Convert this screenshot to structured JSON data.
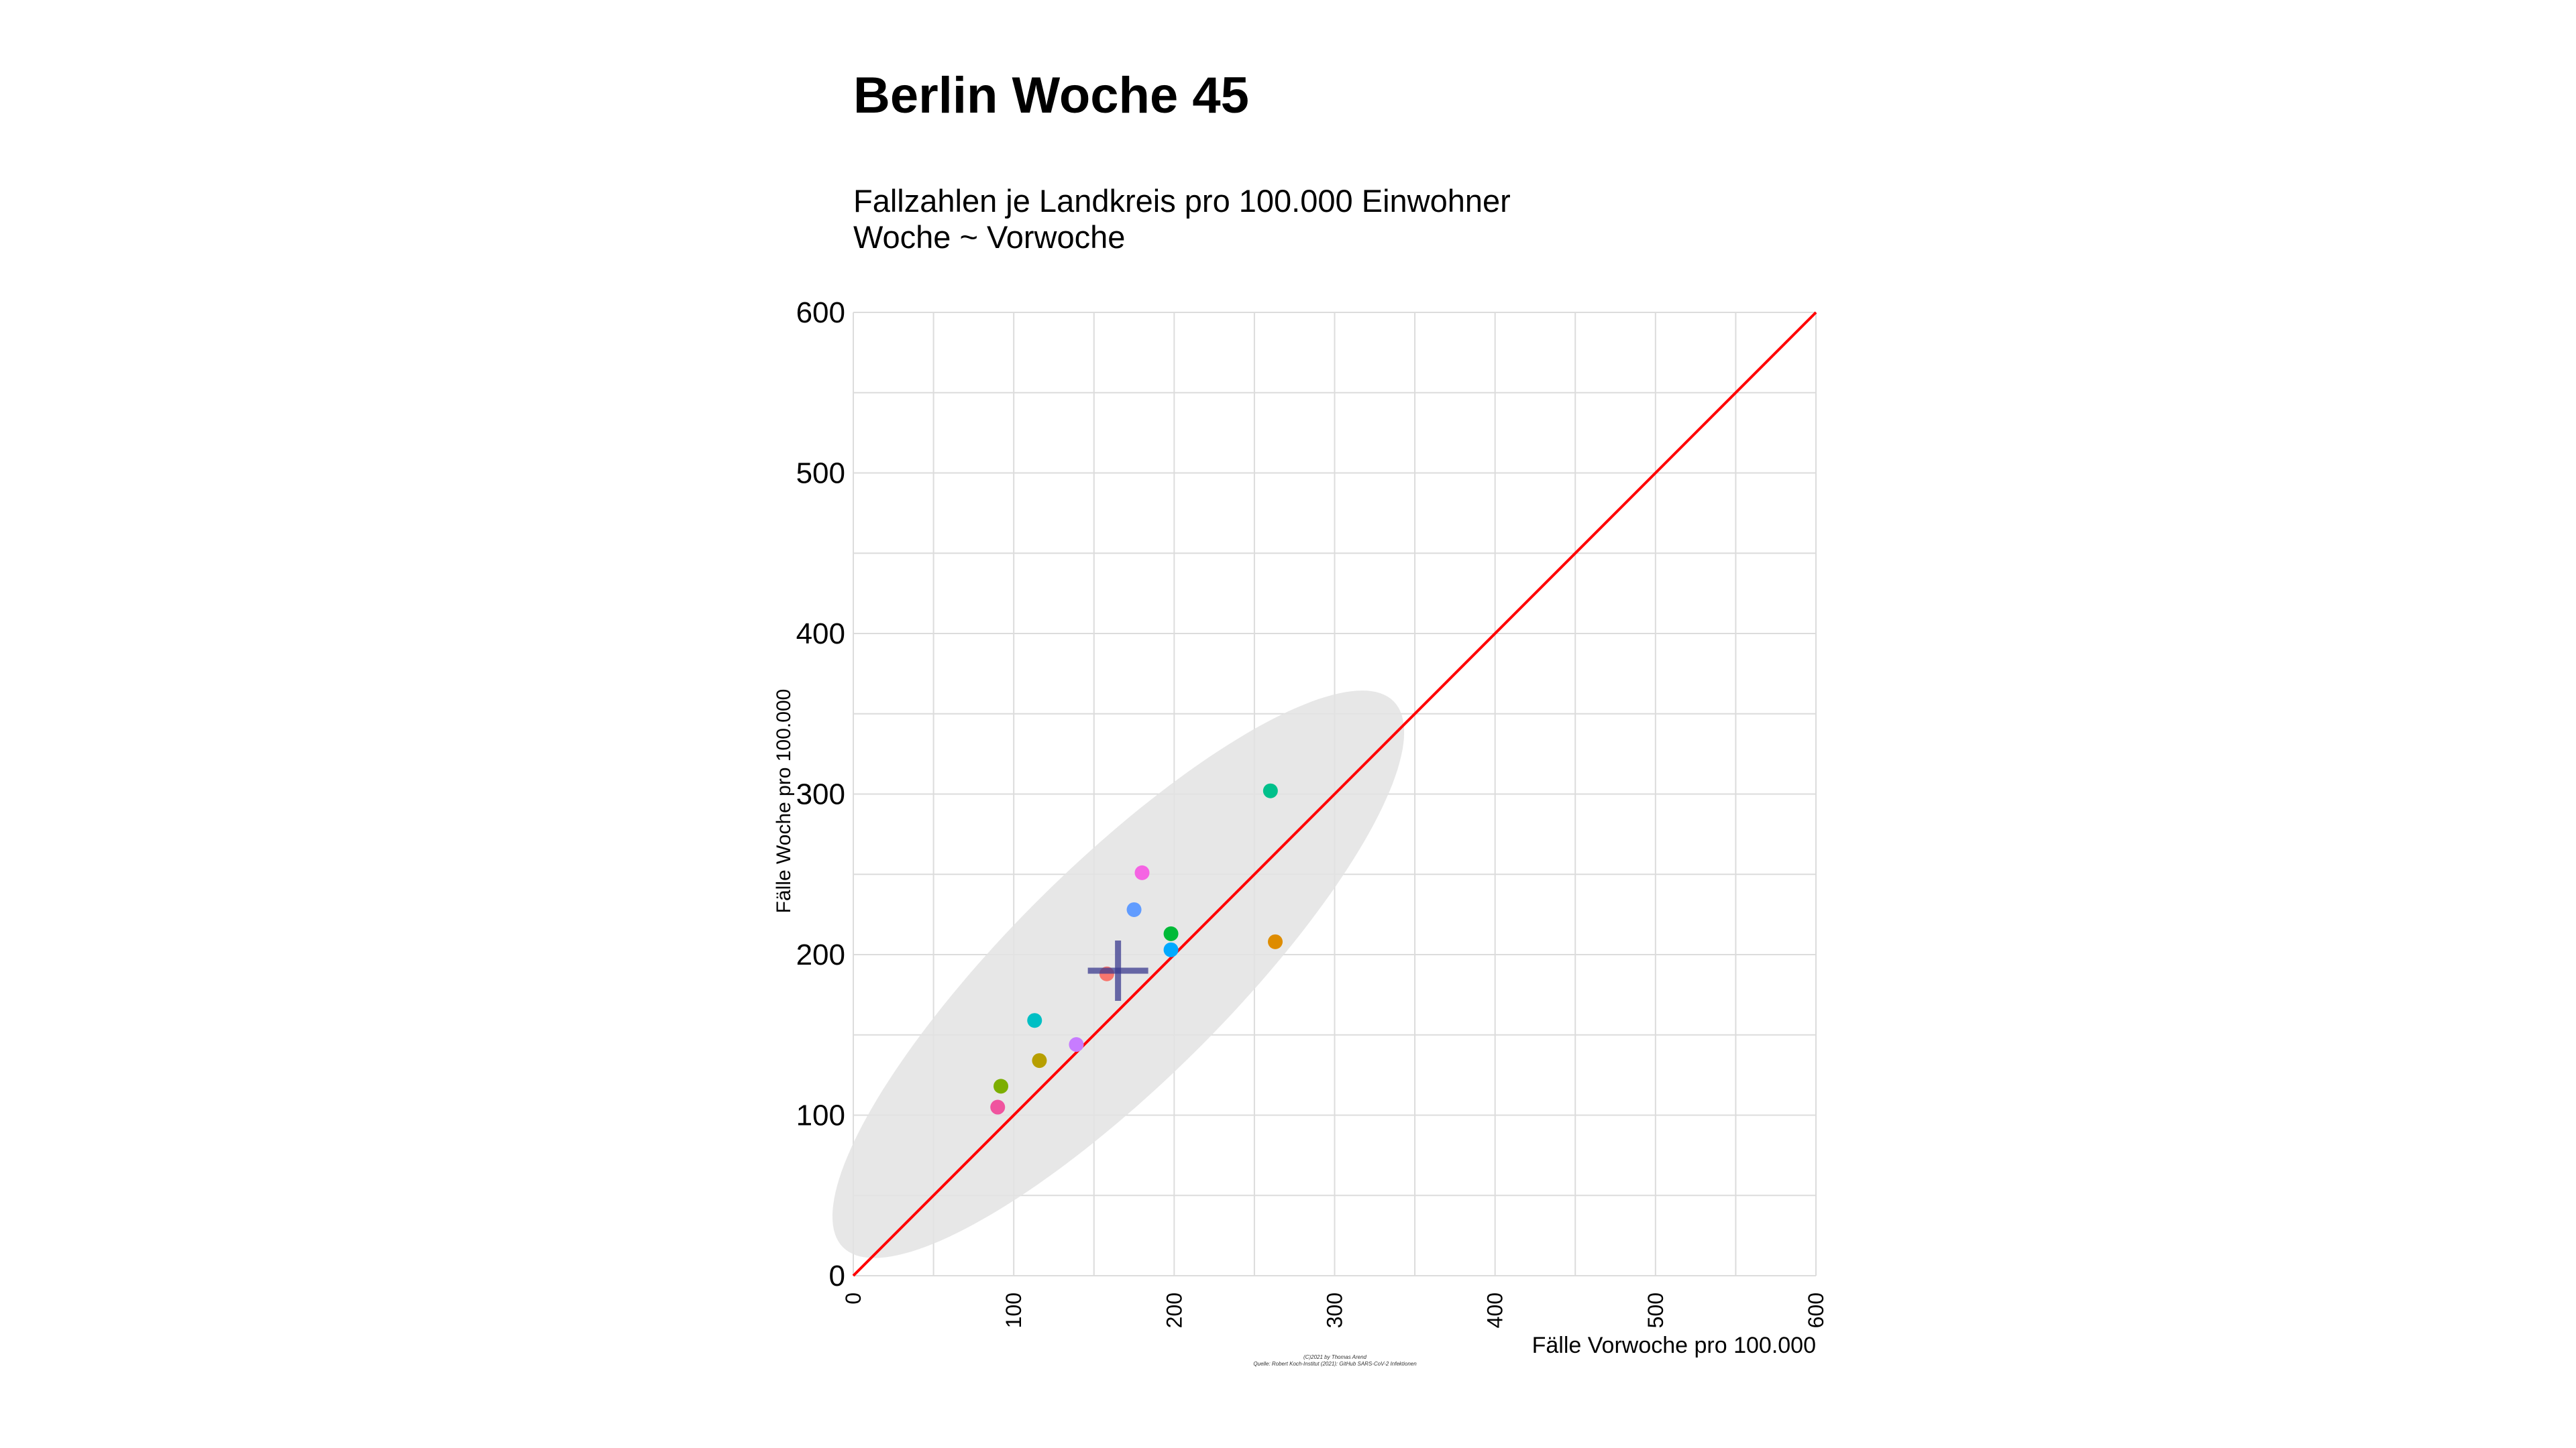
{
  "header": {
    "title": "Berlin Woche 45",
    "subtitle_line1": "Fallzahlen je Landkreis pro 100.000 Einwohner",
    "subtitle_line2": "Woche ~ Vorwoche"
  },
  "credits": {
    "line1": "(C)2021 by Thomas Arend",
    "line2": "Quelle: Robert Koch-Institut (2021): GitHub SARS-CoV-2 Infektionen"
  },
  "chart_data": {
    "type": "scatter",
    "xlabel": "Fälle Vorwoche pro 100.000",
    "ylabel": "Fälle Woche pro 100.000",
    "xlim": [
      0,
      600
    ],
    "ylim": [
      0,
      600
    ],
    "x_ticks": [
      0,
      100,
      200,
      300,
      400,
      500,
      600
    ],
    "y_ticks": [
      0,
      100,
      200,
      300,
      400,
      500,
      600
    ],
    "minor_grid_step": 50,
    "grid": true,
    "reference_line": {
      "slope": 1,
      "intercept": 0,
      "color": "#ff0000"
    },
    "ellipse": {
      "color": "#e3e3e3"
    },
    "mean_cross": {
      "x": 165,
      "y": 190,
      "color": "#3b3b8f"
    },
    "points": [
      {
        "x": 90,
        "y": 105,
        "color": "#f0549f"
      },
      {
        "x": 92,
        "y": 118,
        "color": "#7cae00"
      },
      {
        "x": 113,
        "y": 159,
        "color": "#00bfc4"
      },
      {
        "x": 116,
        "y": 134,
        "color": "#b79f00"
      },
      {
        "x": 139,
        "y": 144,
        "color": "#c77cff"
      },
      {
        "x": 158,
        "y": 188,
        "color": "#f8766d"
      },
      {
        "x": 175,
        "y": 228,
        "color": "#619cff"
      },
      {
        "x": 180,
        "y": 251,
        "color": "#f564e3"
      },
      {
        "x": 198,
        "y": 213,
        "color": "#00ba38"
      },
      {
        "x": 198,
        "y": 203,
        "color": "#00a9ff"
      },
      {
        "x": 260,
        "y": 302,
        "color": "#00c08b"
      },
      {
        "x": 263,
        "y": 208,
        "color": "#de8c00"
      }
    ]
  }
}
